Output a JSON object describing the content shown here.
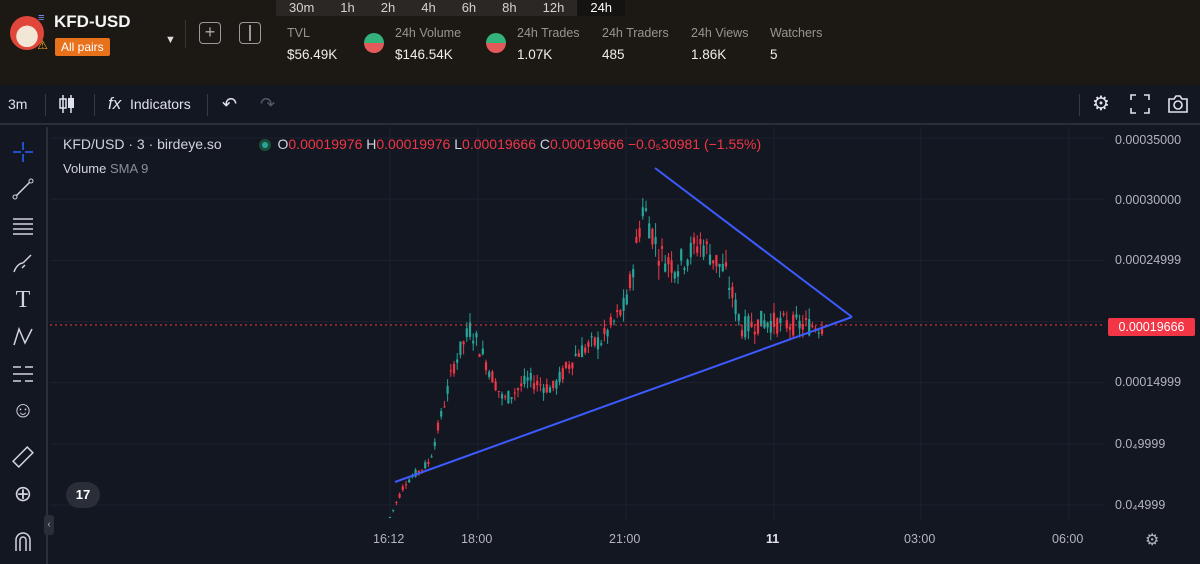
{
  "token": {
    "name": "KFD-USD",
    "pairs_badge": "All pairs"
  },
  "timeframes": [
    "30m",
    "1h",
    "2h",
    "4h",
    "6h",
    "8h",
    "12h",
    "24h"
  ],
  "active_timeframe": "24h",
  "stats": [
    {
      "label": "TVL",
      "value": "$56.49K"
    },
    {
      "label": "24h Volume",
      "value": "$146.54K"
    },
    {
      "label": "24h Trades",
      "value": "1.07K"
    },
    {
      "label": "24h Traders",
      "value": "485"
    },
    {
      "label": "24h Views",
      "value": "1.86K"
    },
    {
      "label": "Watchers",
      "value": "5"
    }
  ],
  "toolbar": {
    "interval": "3m",
    "indicators_label": "Indicators"
  },
  "legend": {
    "symbol": "KFD/USD · 3 · birdeye.so",
    "o_label": "O",
    "o_value": "0.00019976",
    "h_label": "H",
    "h_value": "0.00019976",
    "l_label": "L",
    "l_value": "0.00019666",
    "c_label": "C",
    "c_value": "0.00019666",
    "change": "−0.0₅30981 (−1.55%)",
    "volume_label": "Volume",
    "sma_label": "SMA 9"
  },
  "y_axis_labels": [
    "0.00035000",
    "0.00030000",
    "0.00024999",
    "0.00014999",
    "0.0₄9999",
    "0.0₄4999"
  ],
  "x_axis_labels": [
    "16:12",
    "18:00",
    "21:00",
    "11",
    "03:00",
    "06:00"
  ],
  "current_price": "0.00019666",
  "tv_logo": "17",
  "colors": {
    "up": "#26a69a",
    "down": "#f23645",
    "trendline": "#3d5afe",
    "accent": "#2962ff"
  },
  "chart_data": {
    "type": "candlestick",
    "y_axis_scale": "linear",
    "close_series": [
      {
        "time": "16:12",
        "price": 4e-05
      },
      {
        "time": "16:30",
        "price": 6.8e-05
      },
      {
        "time": "17:00",
        "price": 8.5e-05
      },
      {
        "time": "17:30",
        "price": 0.000165
      },
      {
        "time": "17:50",
        "price": 0.000195
      },
      {
        "time": "18:00",
        "price": 0.00018
      },
      {
        "time": "18:30",
        "price": 0.000135
      },
      {
        "time": "19:00",
        "price": 0.000152
      },
      {
        "time": "19:30",
        "price": 0.000145
      },
      {
        "time": "20:00",
        "price": 0.000175
      },
      {
        "time": "20:30",
        "price": 0.000185
      },
      {
        "time": "21:00",
        "price": 0.000215
      },
      {
        "time": "21:20",
        "price": 0.000295
      },
      {
        "time": "21:40",
        "price": 0.000255
      },
      {
        "time": "22:00",
        "price": 0.000245
      },
      {
        "time": "22:30",
        "price": 0.000265
      },
      {
        "time": "23:00",
        "price": 0.00024
      },
      {
        "time": "23:20",
        "price": 0.000195
      },
      {
        "time": "23:45",
        "price": 0.0002
      },
      {
        "time": "00:30",
        "price": 0.000197
      },
      {
        "time": "01:00",
        "price": 0.0001967
      }
    ],
    "high": 0.000325,
    "low": 3.5e-05,
    "last": 0.00019666,
    "trendlines": [
      {
        "from": {
          "time": "16:12",
          "price": 3.8e-05
        },
        "to": {
          "time": "01:45",
          "price": 0.000203
        }
      },
      {
        "from": {
          "time": "21:30",
          "price": 0.000325
        },
        "to": {
          "time": "01:45",
          "price": 0.000203
        }
      }
    ]
  }
}
